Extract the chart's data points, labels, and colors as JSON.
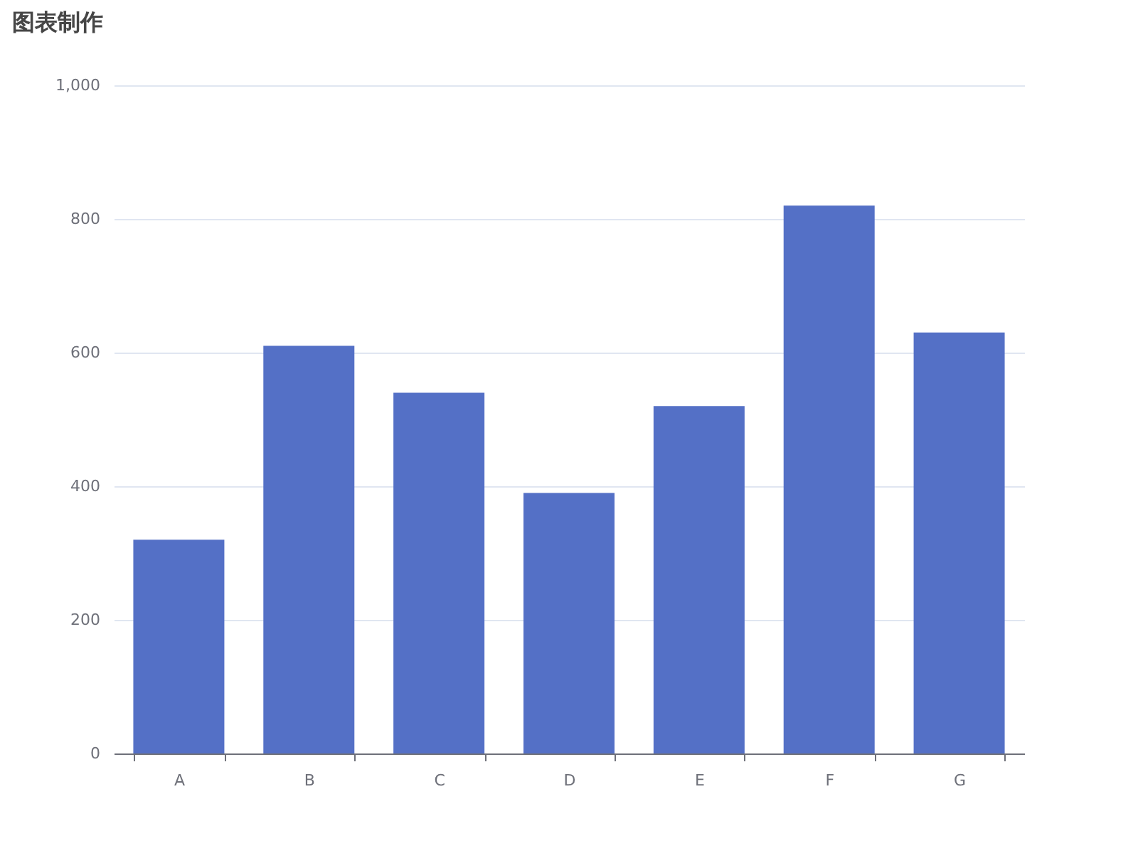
{
  "chart_data": {
    "type": "bar",
    "title": "图表制作",
    "categories": [
      "A",
      "B",
      "C",
      "D",
      "E",
      "F",
      "G"
    ],
    "values": [
      320,
      610,
      540,
      390,
      520,
      820,
      630
    ],
    "color": "#5470c6",
    "ylim": [
      0,
      1000
    ],
    "yticks": [
      0,
      200,
      400,
      600,
      800,
      {
        "value": 1000,
        "label": "1,000"
      }
    ],
    "grid": "y"
  }
}
